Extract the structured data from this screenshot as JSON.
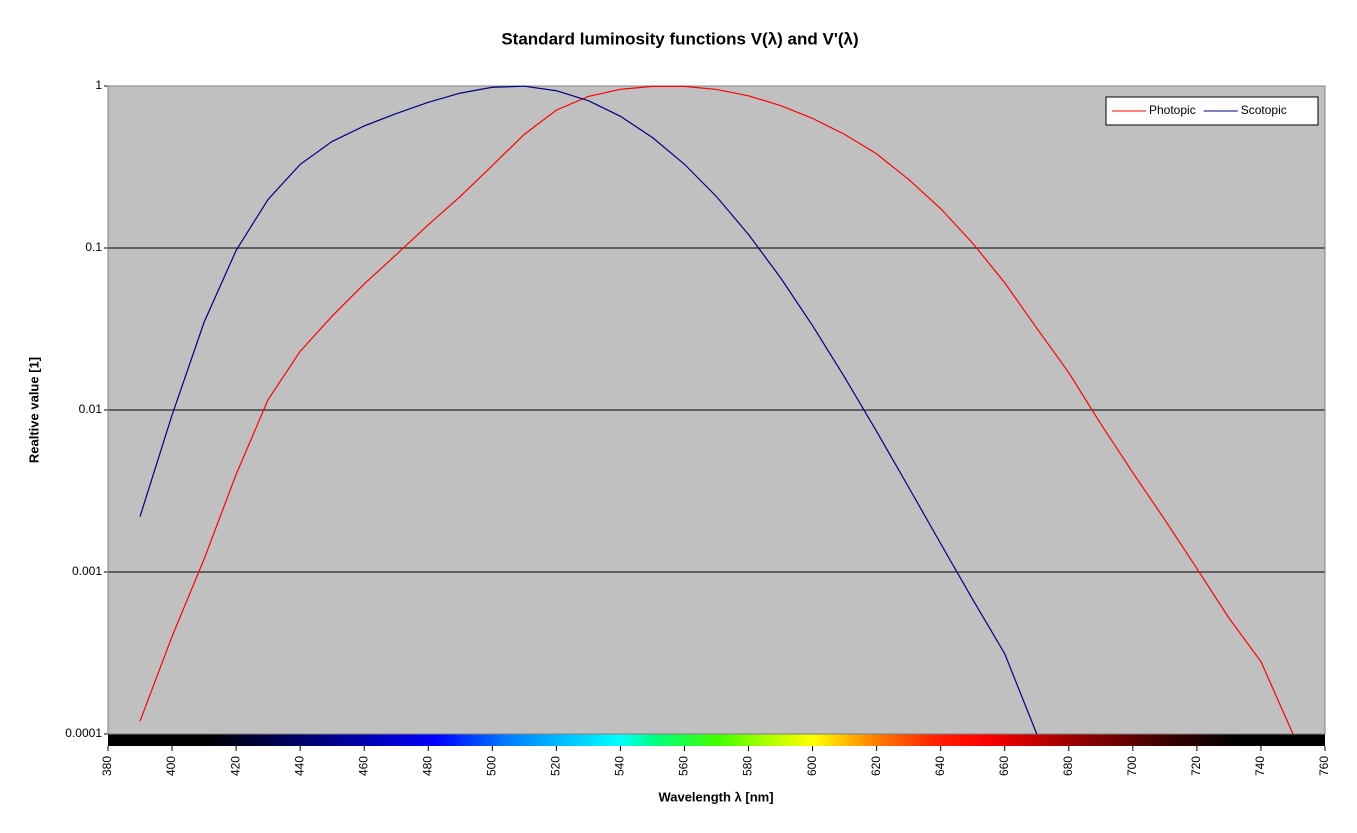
{
  "chart_data": {
    "type": "line",
    "title": "Standard luminosity functions V(λ) and V'(λ)",
    "x_label": "Wavelength λ [nm]",
    "y_label": "Realtive value [1]",
    "x": [
      390,
      400,
      410,
      420,
      430,
      440,
      450,
      460,
      470,
      480,
      490,
      500,
      510,
      520,
      530,
      540,
      550,
      560,
      570,
      580,
      590,
      600,
      610,
      620,
      630,
      640,
      650,
      660,
      670,
      680,
      690,
      700,
      710,
      720,
      730,
      740,
      750
    ],
    "series": [
      {
        "name": "Photopic",
        "color": "#ff0000",
        "values": [
          0.00012,
          0.0004,
          0.0012,
          0.004,
          0.0116,
          0.023,
          0.038,
          0.06,
          0.091,
          0.139,
          0.208,
          0.323,
          0.503,
          0.71,
          0.862,
          0.954,
          0.995,
          0.995,
          0.952,
          0.87,
          0.757,
          0.631,
          0.503,
          0.381,
          0.265,
          0.175,
          0.107,
          0.061,
          0.032,
          0.017,
          0.0082,
          0.0041,
          0.0021,
          0.00105,
          0.00052,
          0.00028,
          0.0001
        ]
      },
      {
        "name": "Scotopic",
        "color": "#000080",
        "values": [
          0.0022,
          0.0093,
          0.0348,
          0.0966,
          0.1998,
          0.3281,
          0.455,
          0.567,
          0.676,
          0.793,
          0.904,
          0.982,
          0.997,
          0.935,
          0.811,
          0.65,
          0.481,
          0.3288,
          0.2076,
          0.1212,
          0.0655,
          0.03315,
          0.01593,
          0.00737,
          0.003335,
          0.001497,
          0.000677,
          0.000313,
          0.0001,
          null,
          null,
          null,
          null,
          null,
          null,
          null,
          null
        ]
      }
    ],
    "xlim": [
      380,
      760
    ],
    "xticks": [
      380,
      400,
      420,
      440,
      460,
      480,
      500,
      520,
      540,
      560,
      580,
      600,
      620,
      640,
      660,
      680,
      700,
      720,
      740,
      760
    ],
    "ylim": [
      0.0001,
      1
    ],
    "yticks": [
      0.0001,
      0.001,
      0.01,
      0.1,
      1
    ],
    "y_scale": "log",
    "grid": true,
    "legend": "top-right"
  }
}
